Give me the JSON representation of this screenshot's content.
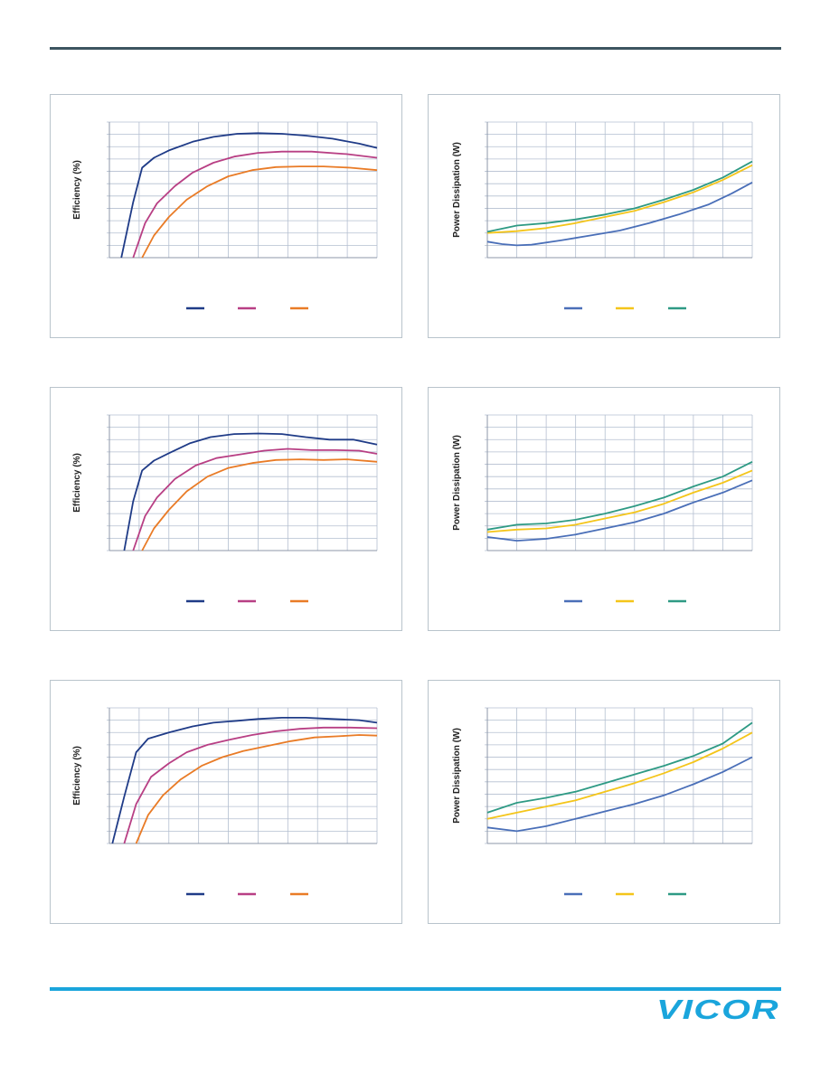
{
  "brand": {
    "logo_text": "VICOR",
    "logo_color": "#1aa5dc",
    "rule_color": "#3d5560"
  },
  "chart_data": [
    {
      "id": "eff1",
      "type": "line",
      "ylabel": "Efficiency (%)",
      "xlim": [
        0,
        9
      ],
      "ylim": [
        0,
        11
      ],
      "series": [
        {
          "color": "#1f3b87",
          "points": [
            [
              0.4,
              0
            ],
            [
              0.8,
              4.5
            ],
            [
              1.1,
              7.3
            ],
            [
              1.5,
              8.1
            ],
            [
              2,
              8.7
            ],
            [
              2.8,
              9.4
            ],
            [
              3.5,
              9.8
            ],
            [
              4.3,
              10.05
            ],
            [
              5,
              10.1
            ],
            [
              5.8,
              10.05
            ],
            [
              6.6,
              9.9
            ],
            [
              7.5,
              9.65
            ],
            [
              8.4,
              9.25
            ],
            [
              9,
              8.9
            ]
          ]
        },
        {
          "color": "#b83f84",
          "points": [
            [
              0.8,
              0
            ],
            [
              1.2,
              2.8
            ],
            [
              1.6,
              4.4
            ],
            [
              2.2,
              5.8
            ],
            [
              2.8,
              6.9
            ],
            [
              3.5,
              7.7
            ],
            [
              4.2,
              8.2
            ],
            [
              5,
              8.5
            ],
            [
              5.8,
              8.6
            ],
            [
              6.8,
              8.6
            ],
            [
              8,
              8.4
            ],
            [
              9,
              8.1
            ]
          ]
        },
        {
          "color": "#e97b26",
          "points": [
            [
              1.1,
              0
            ],
            [
              1.5,
              1.8
            ],
            [
              2,
              3.3
            ],
            [
              2.6,
              4.7
            ],
            [
              3.3,
              5.8
            ],
            [
              4,
              6.6
            ],
            [
              4.8,
              7.1
            ],
            [
              5.6,
              7.35
            ],
            [
              6.4,
              7.4
            ],
            [
              7.2,
              7.4
            ],
            [
              8.1,
              7.3
            ],
            [
              9,
              7.1
            ]
          ]
        }
      ]
    },
    {
      "id": "pd1",
      "type": "line",
      "ylabel": "Power Dissipation (W)",
      "xlim": [
        0,
        9
      ],
      "ylim": [
        0,
        11
      ],
      "series": [
        {
          "color": "#4a6fb8",
          "points": [
            [
              0,
              1.3
            ],
            [
              0.5,
              1.1
            ],
            [
              1,
              1
            ],
            [
              1.5,
              1.05
            ],
            [
              2.5,
              1.4
            ],
            [
              3.5,
              1.8
            ],
            [
              4.5,
              2.2
            ],
            [
              5.5,
              2.8
            ],
            [
              6.5,
              3.5
            ],
            [
              7.5,
              4.3
            ],
            [
              8.3,
              5.2
            ],
            [
              9,
              6.1
            ]
          ]
        },
        {
          "color": "#f4c51a",
          "points": [
            [
              0,
              2
            ],
            [
              1,
              2.15
            ],
            [
              2,
              2.4
            ],
            [
              3,
              2.8
            ],
            [
              4,
              3.3
            ],
            [
              5,
              3.8
            ],
            [
              6,
              4.5
            ],
            [
              7,
              5.3
            ],
            [
              8,
              6.3
            ],
            [
              9,
              7.5
            ]
          ]
        },
        {
          "color": "#2e9a84",
          "points": [
            [
              0,
              2.1
            ],
            [
              1,
              2.6
            ],
            [
              2,
              2.8
            ],
            [
              3,
              3.1
            ],
            [
              4,
              3.5
            ],
            [
              5,
              4
            ],
            [
              6,
              4.7
            ],
            [
              7,
              5.5
            ],
            [
              8,
              6.5
            ],
            [
              9,
              7.8
            ]
          ]
        }
      ]
    },
    {
      "id": "eff2",
      "type": "line",
      "ylabel": "Efficiency (%)",
      "xlim": [
        0,
        9
      ],
      "ylim": [
        0,
        11
      ],
      "series": [
        {
          "color": "#1f3b87",
          "points": [
            [
              0.5,
              0
            ],
            [
              0.8,
              4
            ],
            [
              1.1,
              6.5
            ],
            [
              1.5,
              7.3
            ],
            [
              2,
              7.9
            ],
            [
              2.7,
              8.7
            ],
            [
              3.4,
              9.2
            ],
            [
              4.2,
              9.45
            ],
            [
              5,
              9.5
            ],
            [
              5.8,
              9.45
            ],
            [
              6.6,
              9.2
            ],
            [
              7.4,
              9
            ],
            [
              8.2,
              9
            ],
            [
              9,
              8.6
            ]
          ]
        },
        {
          "color": "#b83f84",
          "points": [
            [
              0.8,
              0
            ],
            [
              1.2,
              2.8
            ],
            [
              1.6,
              4.3
            ],
            [
              2.2,
              5.8
            ],
            [
              2.9,
              6.9
            ],
            [
              3.6,
              7.5
            ],
            [
              4.4,
              7.8
            ],
            [
              5.2,
              8.1
            ],
            [
              6,
              8.25
            ],
            [
              6.8,
              8.15
            ],
            [
              7.6,
              8.15
            ],
            [
              8.4,
              8.1
            ],
            [
              9,
              7.85
            ]
          ]
        },
        {
          "color": "#e97b26",
          "points": [
            [
              1.1,
              0
            ],
            [
              1.5,
              1.8
            ],
            [
              2,
              3.3
            ],
            [
              2.6,
              4.8
            ],
            [
              3.3,
              6
            ],
            [
              4,
              6.7
            ],
            [
              4.8,
              7.1
            ],
            [
              5.6,
              7.35
            ],
            [
              6.4,
              7.4
            ],
            [
              7.2,
              7.35
            ],
            [
              8,
              7.4
            ],
            [
              9,
              7.2
            ]
          ]
        }
      ]
    },
    {
      "id": "pd2",
      "type": "line",
      "ylabel": "Power Dissipation (W)",
      "xlim": [
        0,
        9
      ],
      "ylim": [
        0,
        11
      ],
      "series": [
        {
          "color": "#4a6fb8",
          "points": [
            [
              0,
              1.1
            ],
            [
              1,
              0.8
            ],
            [
              2,
              0.95
            ],
            [
              3,
              1.3
            ],
            [
              4,
              1.8
            ],
            [
              5,
              2.3
            ],
            [
              6,
              3
            ],
            [
              7,
              3.9
            ],
            [
              8,
              4.7
            ],
            [
              9,
              5.7
            ]
          ]
        },
        {
          "color": "#f4c51a",
          "points": [
            [
              0,
              1.5
            ],
            [
              1,
              1.7
            ],
            [
              2,
              1.8
            ],
            [
              3,
              2.1
            ],
            [
              4,
              2.6
            ],
            [
              5,
              3.1
            ],
            [
              6,
              3.8
            ],
            [
              7,
              4.7
            ],
            [
              8,
              5.5
            ],
            [
              9,
              6.5
            ]
          ]
        },
        {
          "color": "#2e9a84",
          "points": [
            [
              0,
              1.7
            ],
            [
              1,
              2.1
            ],
            [
              2,
              2.2
            ],
            [
              3,
              2.5
            ],
            [
              4,
              3
            ],
            [
              5,
              3.6
            ],
            [
              6,
              4.3
            ],
            [
              7,
              5.2
            ],
            [
              8,
              6
            ],
            [
              9,
              7.2
            ]
          ]
        }
      ]
    },
    {
      "id": "eff3",
      "type": "line",
      "ylabel": "Efficiency (%)",
      "xlim": [
        0,
        9
      ],
      "ylim": [
        0,
        11
      ],
      "series": [
        {
          "color": "#1f3b87",
          "points": [
            [
              0.1,
              0
            ],
            [
              0.5,
              3.8
            ],
            [
              0.9,
              7.4
            ],
            [
              1.3,
              8.5
            ],
            [
              2,
              9
            ],
            [
              2.8,
              9.5
            ],
            [
              3.5,
              9.8
            ],
            [
              4.3,
              9.95
            ],
            [
              5,
              10.1
            ],
            [
              5.8,
              10.2
            ],
            [
              6.6,
              10.2
            ],
            [
              7.5,
              10.1
            ],
            [
              8.4,
              10
            ],
            [
              9,
              9.8
            ]
          ]
        },
        {
          "color": "#b83f84",
          "points": [
            [
              0.5,
              0
            ],
            [
              0.9,
              3.2
            ],
            [
              1.4,
              5.4
            ],
            [
              2,
              6.5
            ],
            [
              2.6,
              7.4
            ],
            [
              3.3,
              8
            ],
            [
              4,
              8.4
            ],
            [
              4.8,
              8.8
            ],
            [
              5.6,
              9.1
            ],
            [
              6.4,
              9.3
            ],
            [
              7.2,
              9.4
            ],
            [
              8.1,
              9.4
            ],
            [
              9,
              9.35
            ]
          ]
        },
        {
          "color": "#e97b26",
          "points": [
            [
              0.9,
              0
            ],
            [
              1.3,
              2.3
            ],
            [
              1.8,
              3.9
            ],
            [
              2.4,
              5.2
            ],
            [
              3.1,
              6.3
            ],
            [
              3.8,
              7
            ],
            [
              4.5,
              7.5
            ],
            [
              5.3,
              7.9
            ],
            [
              6.1,
              8.3
            ],
            [
              6.9,
              8.6
            ],
            [
              7.7,
              8.7
            ],
            [
              8.4,
              8.8
            ],
            [
              9,
              8.75
            ]
          ]
        }
      ]
    },
    {
      "id": "pd3",
      "type": "line",
      "ylabel": "Power Dissipation (W)",
      "xlim": [
        0,
        9
      ],
      "ylim": [
        0,
        11
      ],
      "series": [
        {
          "color": "#4a6fb8",
          "points": [
            [
              0,
              1.3
            ],
            [
              1,
              1
            ],
            [
              2,
              1.4
            ],
            [
              3,
              2
            ],
            [
              4,
              2.6
            ],
            [
              5,
              3.2
            ],
            [
              6,
              3.9
            ],
            [
              7,
              4.8
            ],
            [
              8,
              5.8
            ],
            [
              9,
              7
            ]
          ]
        },
        {
          "color": "#f4c51a",
          "points": [
            [
              0,
              2
            ],
            [
              1,
              2.5
            ],
            [
              2,
              3
            ],
            [
              3,
              3.5
            ],
            [
              4,
              4.2
            ],
            [
              5,
              4.9
            ],
            [
              6,
              5.7
            ],
            [
              7,
              6.6
            ],
            [
              8,
              7.7
            ],
            [
              9,
              9
            ]
          ]
        },
        {
          "color": "#2e9a84",
          "points": [
            [
              0,
              2.5
            ],
            [
              1,
              3.3
            ],
            [
              2,
              3.7
            ],
            [
              3,
              4.2
            ],
            [
              4,
              4.9
            ],
            [
              5,
              5.6
            ],
            [
              6,
              6.3
            ],
            [
              7,
              7.1
            ],
            [
              8,
              8.1
            ],
            [
              9,
              9.8
            ]
          ]
        }
      ]
    }
  ]
}
